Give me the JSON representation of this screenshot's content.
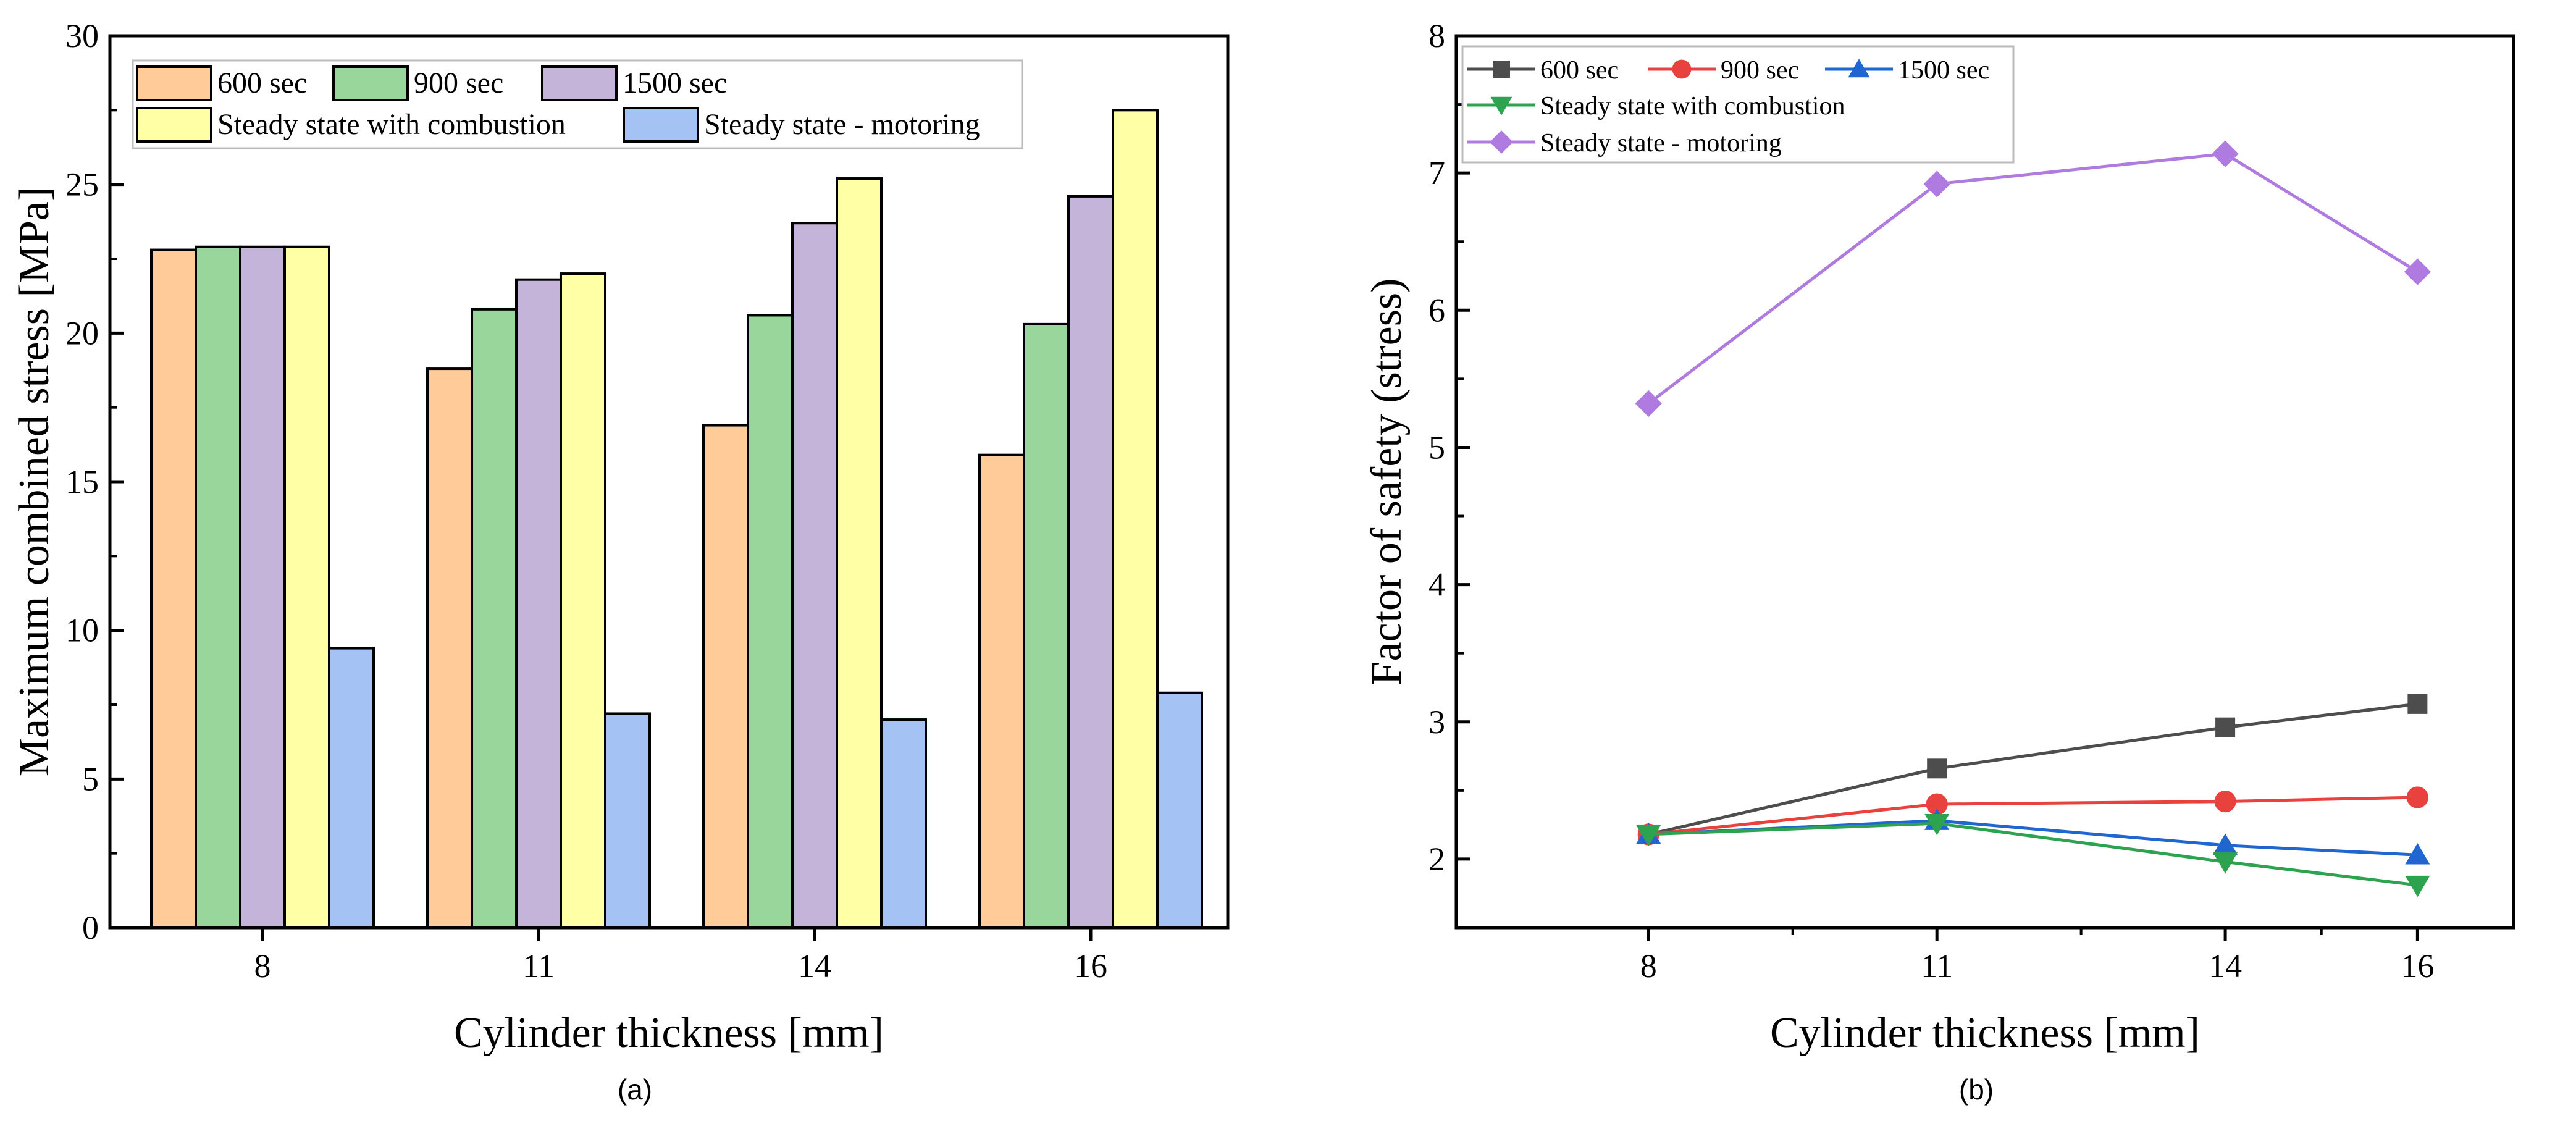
{
  "chart_data": [
    {
      "id": "a",
      "type": "bar",
      "caption": "(a)",
      "xlabel": "Cylinder thickness [mm]",
      "ylabel": "Maximum combined stress [MPa]",
      "categories": [
        "8",
        "11",
        "14",
        "16"
      ],
      "ylim": [
        0,
        30
      ],
      "yticks": [
        0,
        5,
        10,
        15,
        20,
        25,
        30
      ],
      "grid": false,
      "legend_position": "top",
      "series": [
        {
          "name": "600 sec",
          "color": "#FFCC99",
          "values": [
            22.8,
            18.8,
            16.9,
            15.9
          ]
        },
        {
          "name": "900 sec",
          "color": "#99D69C",
          "values": [
            22.9,
            20.8,
            20.6,
            20.3
          ]
        },
        {
          "name": "1500 sec",
          "color": "#C4B4D9",
          "values": [
            22.9,
            21.8,
            23.7,
            24.6
          ]
        },
        {
          "name": "Steady state with combustion",
          "color": "#FFFFA6",
          "values": [
            22.9,
            22.0,
            25.2,
            27.5
          ]
        },
        {
          "name": "Steady state - motoring",
          "color": "#A4C2F4",
          "values": [
            9.4,
            7.2,
            7.0,
            7.9
          ]
        }
      ]
    },
    {
      "id": "b",
      "type": "line",
      "caption": "(b)",
      "xlabel": "Cylinder thickness [mm]",
      "ylabel": "Factor of safety (stress)",
      "x": [
        8,
        11,
        14,
        16
      ],
      "xticks": [
        8,
        11,
        14,
        16
      ],
      "xlim": [
        6.0,
        17.0
      ],
      "ylim": [
        1.5,
        8
      ],
      "yticks": [
        2,
        3,
        4,
        5,
        6,
        7,
        8
      ],
      "grid": false,
      "legend_position": "top-left",
      "series": [
        {
          "name": "600 sec",
          "color": "#4D4D4D",
          "marker": "square",
          "values": [
            2.18,
            2.66,
            2.96,
            3.13
          ]
        },
        {
          "name": "900 sec",
          "color": "#E8413E",
          "marker": "circle",
          "values": [
            2.18,
            2.4,
            2.42,
            2.45
          ]
        },
        {
          "name": "1500 sec",
          "color": "#1F66D1",
          "marker": "triangle-up",
          "values": [
            2.18,
            2.28,
            2.1,
            2.03
          ]
        },
        {
          "name": "Steady state with combustion",
          "color": "#2EA34F",
          "marker": "triangle-down",
          "values": [
            2.18,
            2.26,
            1.98,
            1.81
          ]
        },
        {
          "name": "Steady state - motoring",
          "color": "#B07BE0",
          "marker": "diamond",
          "values": [
            5.32,
            6.92,
            7.14,
            6.28
          ]
        }
      ]
    }
  ]
}
